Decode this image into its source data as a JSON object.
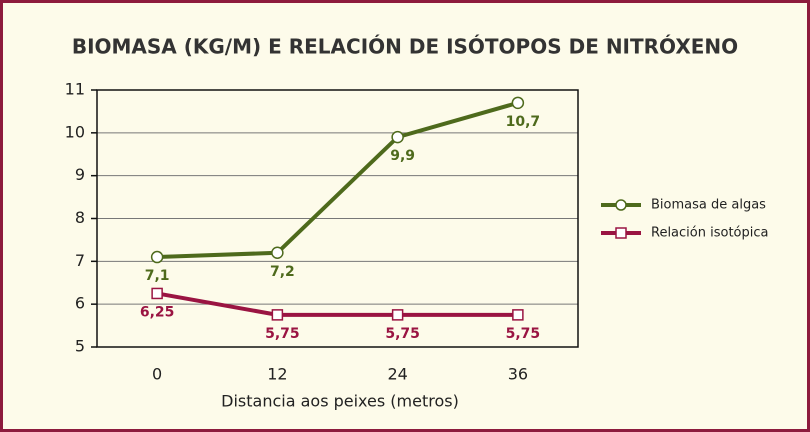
{
  "chart_data": {
    "type": "line",
    "title": "BIOMASA (KG/M) E RELACIÓN DE ISÓTOPOS DE NITRÓXENO",
    "x_label": "Distancia aos peixes (metros)",
    "categories": [
      "0",
      "12",
      "24",
      "36"
    ],
    "series": [
      {
        "name": "Biomasa de algas",
        "color": "#4e6a1c",
        "marker": "circle",
        "values": [
          7.1,
          7.2,
          9.9,
          10.7
        ],
        "value_labels": [
          "7,1",
          "7,2",
          "9,9",
          "10,7"
        ]
      },
      {
        "name": "Relación isotópica",
        "color": "#9a1442",
        "marker": "square",
        "values": [
          6.25,
          5.75,
          5.75,
          5.75
        ],
        "value_labels": [
          "6,25",
          "5,75",
          "5,75",
          "5,75"
        ]
      }
    ],
    "ylim": [
      5,
      11
    ],
    "yticks": [
      5,
      6,
      7,
      8,
      9,
      10,
      11
    ],
    "grid": true,
    "legend": "right"
  }
}
